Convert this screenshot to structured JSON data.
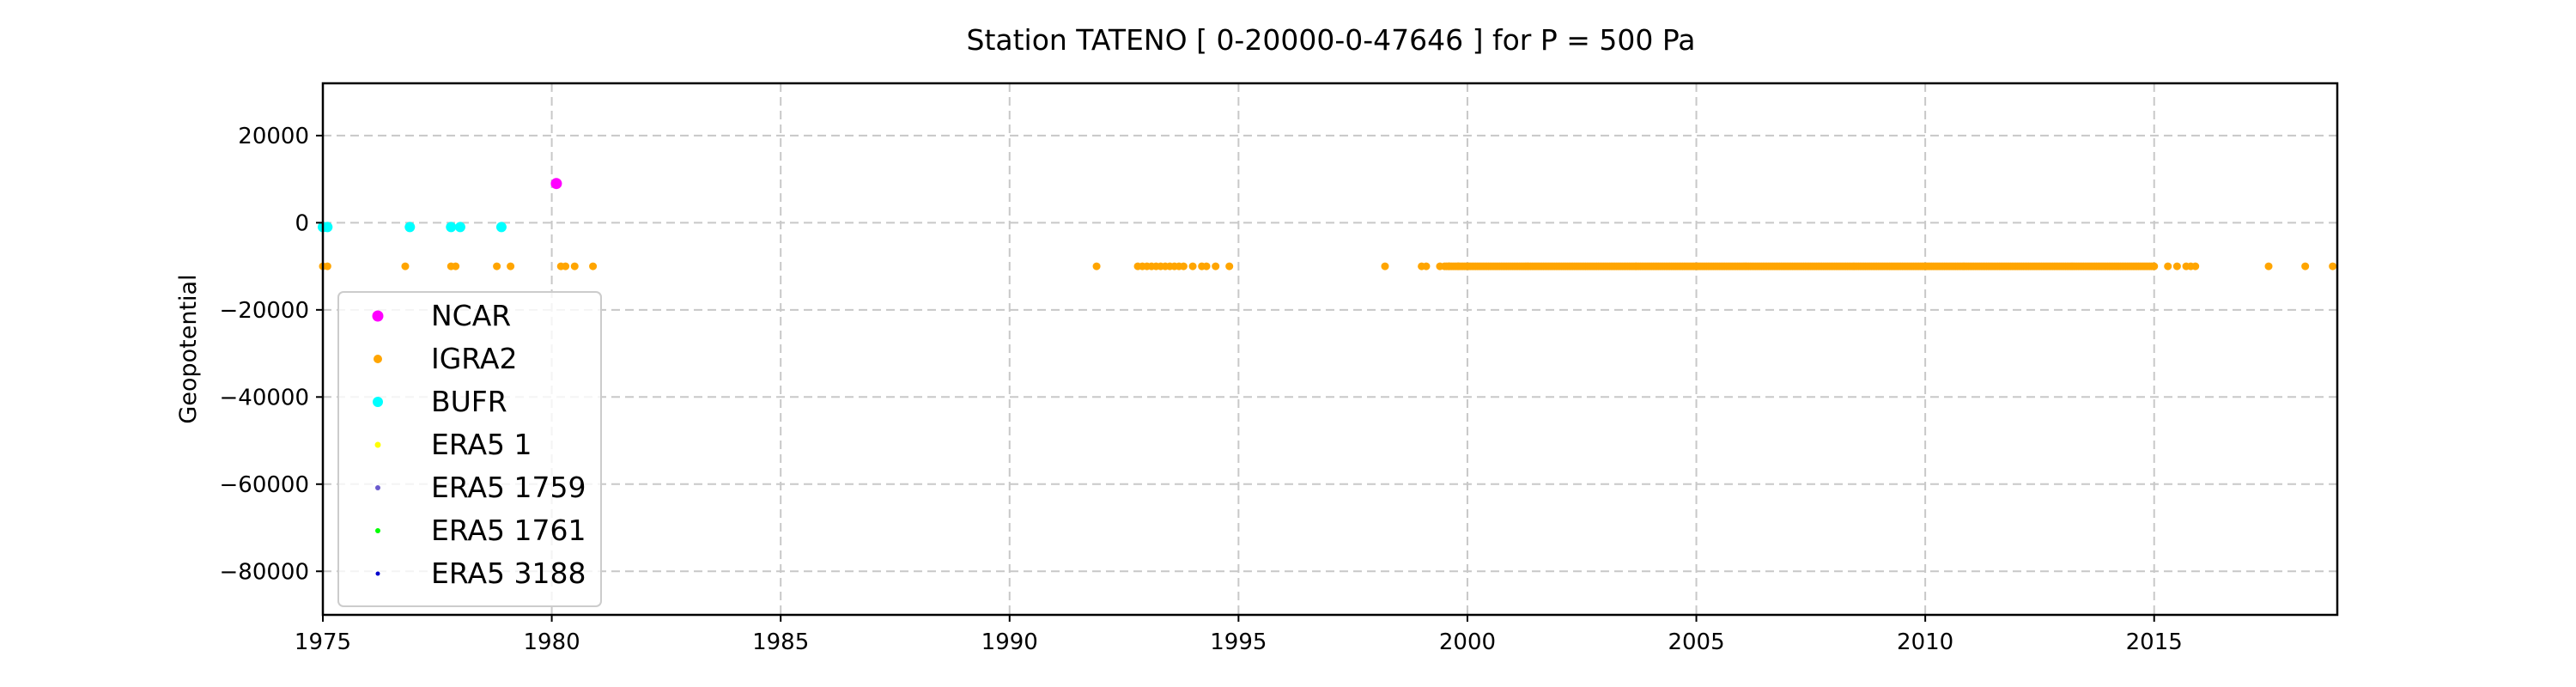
{
  "chart_data": {
    "type": "scatter",
    "title": "Station  TATENO [ 0-20000-0-47646 ]  for P = 500 Pa",
    "xlabel": "",
    "ylabel": "Geopotential",
    "xlim": [
      1975,
      2019
    ],
    "ylim": [
      -90000,
      32000
    ],
    "x_ticks": [
      1975,
      1980,
      1985,
      1990,
      1995,
      2000,
      2005,
      2010,
      2015
    ],
    "y_ticks": [
      20000,
      0,
      -20000,
      -40000,
      -60000,
      -80000
    ],
    "grid": true,
    "legend_position": "lower-left",
    "series": [
      {
        "name": "NCAR",
        "color": "#ff00ff",
        "x": [
          1980.1
        ],
        "y": [
          9000
        ]
      },
      {
        "name": "IGRA2",
        "color": "#ffa500",
        "x": [
          1975.0,
          1975.1,
          1976.8,
          1977.8,
          1977.9,
          1978.8,
          1979.1,
          1980.2,
          1980.3,
          1980.5,
          1980.9,
          1991.9,
          1992.8,
          1992.9,
          1993.0,
          1993.1,
          1993.2,
          1993.3,
          1993.4,
          1993.5,
          1993.6,
          1993.7,
          1993.8,
          1994.0,
          1994.2,
          1994.3,
          1994.5,
          1994.8,
          1998.2,
          1999.0,
          1999.1,
          1999.4,
          1999.6,
          1999.8,
          2015.0,
          2015.3,
          2015.5,
          2015.7,
          2015.8,
          2015.9,
          2017.5,
          2018.3,
          2018.9
        ],
        "y": [
          -10000,
          -10000,
          -10000,
          -10000,
          -10000,
          -10000,
          -10000,
          -10000,
          -10000,
          -10000,
          -10000,
          -10000,
          -10000,
          -10000,
          -10000,
          -10000,
          -10000,
          -10000,
          -10000,
          -10000,
          -10000,
          -10000,
          -10000,
          -10000,
          -10000,
          -10000,
          -10000,
          -10000,
          -10000,
          -10000,
          -10000,
          -10000,
          -10000,
          -10000,
          -10000,
          -10000,
          -10000,
          -10000,
          -10000,
          -10000,
          -10000,
          -10000,
          -10000
        ],
        "dense_range": {
          "x_start": 1999.5,
          "x_end": 2015.0,
          "y": -10000
        }
      },
      {
        "name": "BUFR",
        "color": "#00ffff",
        "x": [
          1975.0,
          1975.1,
          1976.9,
          1977.8,
          1978.0,
          1978.9
        ],
        "y": [
          -1000,
          -1000,
          -1000,
          -1000,
          -1000,
          -1000
        ]
      },
      {
        "name": "ERA5 1",
        "color": "#ffff00",
        "x": [],
        "y": []
      },
      {
        "name": "ERA5 1759",
        "color": "#6a5acd",
        "x": [],
        "y": []
      },
      {
        "name": "ERA5 1761",
        "color": "#00ff00",
        "x": [],
        "y": []
      },
      {
        "name": "ERA5 3188",
        "color": "#0000cd",
        "x": [],
        "y": []
      }
    ]
  }
}
